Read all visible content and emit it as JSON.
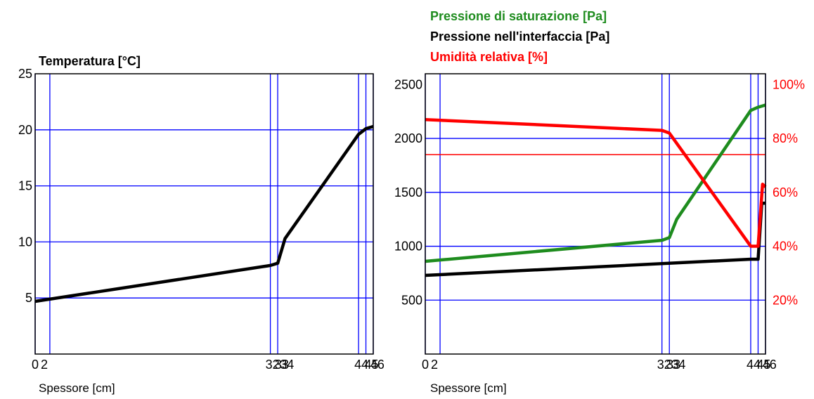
{
  "chart_data": [
    {
      "type": "line",
      "title": "Temperatura [°C]",
      "xlabel": "Spessore [cm]",
      "ylim": [
        0,
        25
      ],
      "yticks": [
        5,
        10,
        15,
        20,
        25
      ],
      "xlim": [
        0,
        46
      ],
      "grid_y": [
        5,
        10,
        15,
        20
      ],
      "layer_boundaries": [
        0,
        2,
        32,
        33,
        44,
        45,
        46
      ],
      "xtick_labels": [
        "0",
        "2",
        "32",
        "33",
        "34",
        "44",
        "45",
        "46"
      ],
      "series": [
        {
          "color": "#000000",
          "x": [
            0,
            32,
            33,
            34,
            44,
            45,
            46
          ],
          "y": [
            4.7,
            7.9,
            8.1,
            10.3,
            19.6,
            20.1,
            20.3
          ]
        }
      ]
    },
    {
      "type": "line",
      "titles": [
        {
          "text": "Pressione di saturazione [Pa]",
          "color": "#1e8c1e"
        },
        {
          "text": "Pressione nell'interfaccia [Pa]",
          "color": "#000000"
        },
        {
          "text": "Umidità relativa [%]",
          "color": "#ff0000"
        }
      ],
      "xlabel": "Spessore [cm]",
      "xlim": [
        0,
        46
      ],
      "ylim": [
        0,
        2600
      ],
      "yticks": [
        500,
        1000,
        1500,
        2000,
        2500
      ],
      "grid_y": [
        500,
        1000,
        1500,
        2000
      ],
      "y2lim": [
        0,
        104
      ],
      "y2ticks": [
        "20%",
        "40%",
        "60%",
        "80%",
        "100%"
      ],
      "layer_boundaries": [
        0,
        2,
        32,
        33,
        44,
        45,
        46
      ],
      "xtick_labels": [
        "0",
        "2",
        "32",
        "33",
        "34",
        "44",
        "45",
        "46"
      ],
      "reference_line_pct": 74,
      "series": [
        {
          "axis": "left",
          "color": "#1e8c1e",
          "x": [
            0,
            32,
            33,
            34,
            44,
            45,
            46
          ],
          "y": [
            860,
            1055,
            1080,
            1250,
            2260,
            2290,
            2310
          ]
        },
        {
          "axis": "left",
          "color": "#000000",
          "x": [
            0,
            44,
            45,
            45.5,
            46
          ],
          "y": [
            730,
            880,
            880,
            1400,
            1400
          ]
        },
        {
          "axis": "right",
          "color": "#ff0000",
          "x": [
            0,
            32,
            33,
            44,
            45,
            45.6,
            46
          ],
          "y": [
            87,
            83,
            82,
            40,
            40,
            63,
            62
          ]
        }
      ]
    }
  ]
}
